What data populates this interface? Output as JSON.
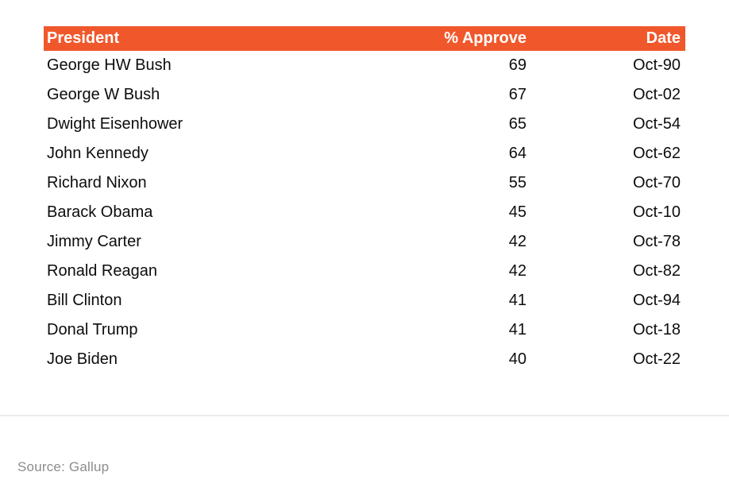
{
  "chart_data": {
    "type": "table",
    "title": "",
    "columns": [
      "President",
      "% Approve",
      "Date"
    ],
    "rows": [
      {
        "name": "George HW Bush",
        "approve": "69",
        "date": "Oct-90"
      },
      {
        "name": "George W Bush",
        "approve": "67",
        "date": "Oct-02"
      },
      {
        "name": "Dwight Eisenhower",
        "approve": "65",
        "date": "Oct-54"
      },
      {
        "name": "John Kennedy",
        "approve": "64",
        "date": "Oct-62"
      },
      {
        "name": "Richard Nixon",
        "approve": "55",
        "date": "Oct-70"
      },
      {
        "name": "Barack Obama",
        "approve": "45",
        "date": "Oct-10"
      },
      {
        "name": "Jimmy Carter",
        "approve": "42",
        "date": "Oct-78"
      },
      {
        "name": "Ronald Reagan",
        "approve": "42",
        "date": "Oct-82"
      },
      {
        "name": "Bill Clinton",
        "approve": "41",
        "date": "Oct-94"
      },
      {
        "name": "Donal Trump",
        "approve": "41",
        "date": "Oct-18"
      },
      {
        "name": "Joe Biden",
        "approve": "40",
        "date": "Oct-22"
      }
    ],
    "source_note": "Source: Gallup",
    "layout": {
      "header_bg": "#f0582b",
      "header_text_color": "#ffffff",
      "row_text_color": "#0d0d0d",
      "source_text_color": "#8c8c8c",
      "divider_color": "#ebebeb"
    }
  }
}
